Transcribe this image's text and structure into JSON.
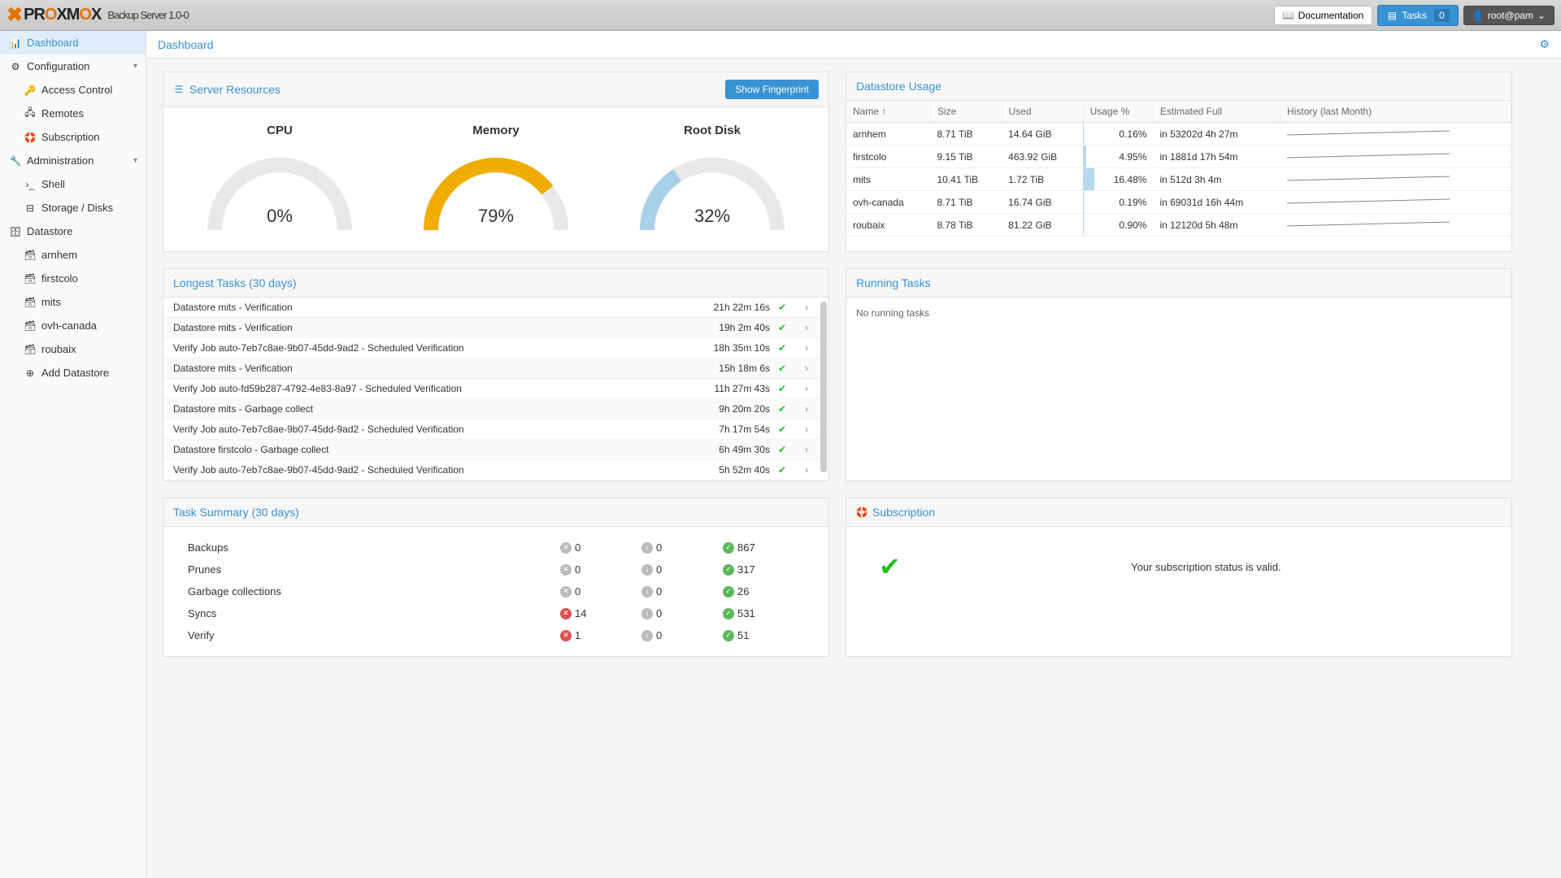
{
  "app": {
    "title": "Backup Server 1.0-0"
  },
  "header": {
    "documentation": "Documentation",
    "tasks": "Tasks",
    "tasks_count": "0",
    "user": "root@pam"
  },
  "sidebar": {
    "dashboard": "Dashboard",
    "configuration": "Configuration",
    "access_control": "Access Control",
    "remotes": "Remotes",
    "subscription": "Subscription",
    "administration": "Administration",
    "shell": "Shell",
    "storage": "Storage / Disks",
    "datastore": "Datastore",
    "ds_items": [
      "arnhem",
      "firstcolo",
      "mits",
      "ovh-canada",
      "roubaix"
    ],
    "add_datastore": "Add Datastore"
  },
  "breadcrumb": "Dashboard",
  "resources": {
    "title": "Server Resources",
    "btn": "Show Fingerprint",
    "gauges": [
      {
        "label": "CPU",
        "pct": 0,
        "value": "0%",
        "color": "#eee",
        "track": "#e8e8e8"
      },
      {
        "label": "Memory",
        "pct": 79,
        "value": "79%",
        "color": "#f0ad00",
        "track": "#e8e8e8"
      },
      {
        "label": "Root Disk",
        "pct": 32,
        "value": "32%",
        "color": "#a8d0e8",
        "track": "#e8e8e8"
      }
    ]
  },
  "datastore_usage": {
    "title": "Datastore Usage",
    "cols": [
      "Name ↑",
      "Size",
      "Used",
      "Usage %",
      "Estimated Full",
      "History (last Month)"
    ],
    "rows": [
      {
        "name": "arnhem",
        "size": "8.71 TiB",
        "used": "14.64 GiB",
        "usage": "0.16%",
        "usage_pct": 0.16,
        "est": "in 53202d 4h 27m"
      },
      {
        "name": "firstcolo",
        "size": "9.15 TiB",
        "used": "463.92 GiB",
        "usage": "4.95%",
        "usage_pct": 4.95,
        "est": "in 1881d 17h 54m"
      },
      {
        "name": "mits",
        "size": "10.41 TiB",
        "used": "1.72 TiB",
        "usage": "16.48%",
        "usage_pct": 16.48,
        "est": "in 512d 3h 4m"
      },
      {
        "name": "ovh-canada",
        "size": "8.71 TiB",
        "used": "16.74 GiB",
        "usage": "0.19%",
        "usage_pct": 0.19,
        "est": "in 69031d 16h 44m"
      },
      {
        "name": "roubaix",
        "size": "8.78 TiB",
        "used": "81.22 GiB",
        "usage": "0.90%",
        "usage_pct": 0.9,
        "est": "in 12120d 5h 48m"
      }
    ]
  },
  "longest_tasks": {
    "title": "Longest Tasks (30 days)",
    "rows": [
      {
        "name": "Datastore mits - Verification",
        "dur": "21h 22m 16s"
      },
      {
        "name": "Datastore mits - Verification",
        "dur": "19h 2m 40s"
      },
      {
        "name": "Verify Job auto-7eb7c8ae-9b07-45dd-9ad2 - Scheduled Verification",
        "dur": "18h 35m 10s"
      },
      {
        "name": "Datastore mits - Verification",
        "dur": "15h 18m 6s"
      },
      {
        "name": "Verify Job auto-fd59b287-4792-4e83-8a97 - Scheduled Verification",
        "dur": "11h 27m 43s"
      },
      {
        "name": "Datastore mits - Garbage collect",
        "dur": "9h 20m 20s"
      },
      {
        "name": "Verify Job auto-7eb7c8ae-9b07-45dd-9ad2 - Scheduled Verification",
        "dur": "7h 17m 54s"
      },
      {
        "name": "Datastore firstcolo - Garbage collect",
        "dur": "6h 49m 30s"
      },
      {
        "name": "Verify Job auto-7eb7c8ae-9b07-45dd-9ad2 - Scheduled Verification",
        "dur": "5h 52m 40s"
      }
    ]
  },
  "running_tasks": {
    "title": "Running Tasks",
    "empty": "No running tasks"
  },
  "task_summary": {
    "title": "Task Summary (30 days)",
    "rows": [
      {
        "label": "Backups",
        "err": "0",
        "err_c": "gray",
        "warn": "0",
        "ok": "867"
      },
      {
        "label": "Prunes",
        "err": "0",
        "err_c": "gray",
        "warn": "0",
        "ok": "317"
      },
      {
        "label": "Garbage collections",
        "err": "0",
        "err_c": "gray",
        "warn": "0",
        "ok": "26"
      },
      {
        "label": "Syncs",
        "err": "14",
        "err_c": "red",
        "warn": "0",
        "ok": "531"
      },
      {
        "label": "Verify",
        "err": "1",
        "err_c": "red",
        "warn": "0",
        "ok": "51"
      }
    ]
  },
  "subscription": {
    "title": "Subscription",
    "text": "Your subscription status is valid."
  }
}
